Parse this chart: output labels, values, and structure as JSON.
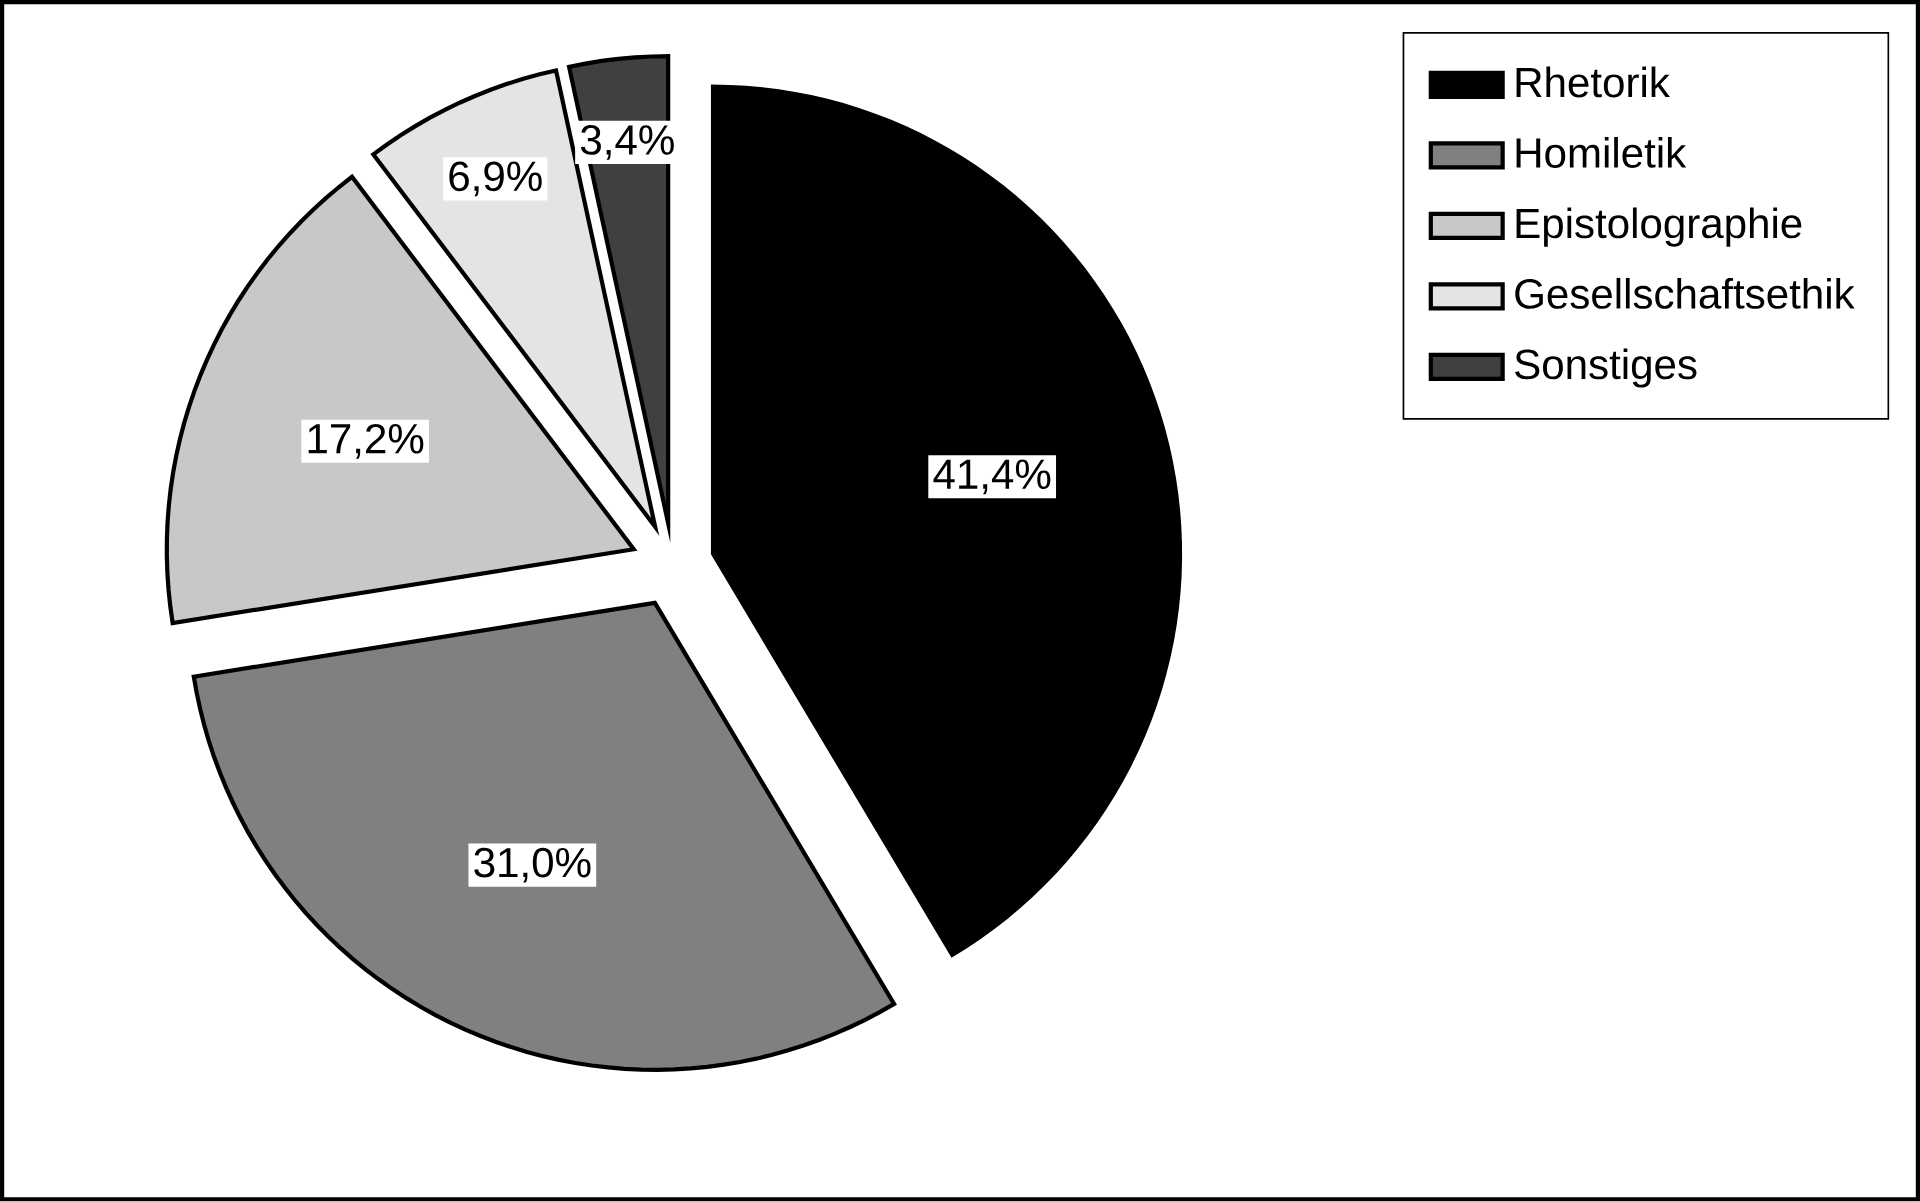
{
  "chart_data": {
    "type": "pie",
    "categories": [
      "Rhetorik",
      "Homiletik",
      "Epistolographie",
      "Gesellschaftsethik",
      "Sonstiges"
    ],
    "values": [
      41.4,
      31.0,
      17.2,
      6.9,
      3.4
    ],
    "value_labels": [
      "41,4%",
      "31,0%",
      "17,2%",
      "6,9%",
      "3,4%"
    ],
    "colors": [
      "#000000",
      "#808080",
      "#c8c8c8",
      "#e4e4e4",
      "#404040"
    ],
    "legend": "top right"
  }
}
